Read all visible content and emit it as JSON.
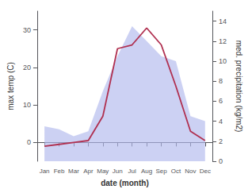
{
  "chart_data": {
    "type": "line",
    "xlabel": "date (month)",
    "ylabel": "max temp (C)",
    "y2label": "med. precipitation (kg/m2)",
    "categories": [
      "Jan",
      "Feb",
      "Mar",
      "Apr",
      "May",
      "Jun",
      "Jul",
      "Aug",
      "Sep",
      "Oct",
      "Nov",
      "Dec"
    ],
    "series": [
      {
        "type": "area",
        "axis": "y2",
        "color": "#b0b8ec",
        "values": [
          3.5,
          3.2,
          2.5,
          3.0,
          7.0,
          10.5,
          13.5,
          12.0,
          10.5,
          10.0,
          4.5,
          4.0
        ]
      },
      {
        "type": "line",
        "color": "#b03050",
        "values": [
          -1.0,
          -0.5,
          0.0,
          0.5,
          7.0,
          25.0,
          26.0,
          30.5,
          26.0,
          15.0,
          3.0,
          0.5
        ]
      }
    ],
    "ylim": [
      -5,
      35
    ],
    "yticks": [
      0,
      10,
      20,
      30
    ],
    "y2lim": [
      0,
      15
    ],
    "y2ticks": [
      0,
      2,
      4,
      6,
      8,
      10,
      12,
      14
    ],
    "grid": false
  }
}
